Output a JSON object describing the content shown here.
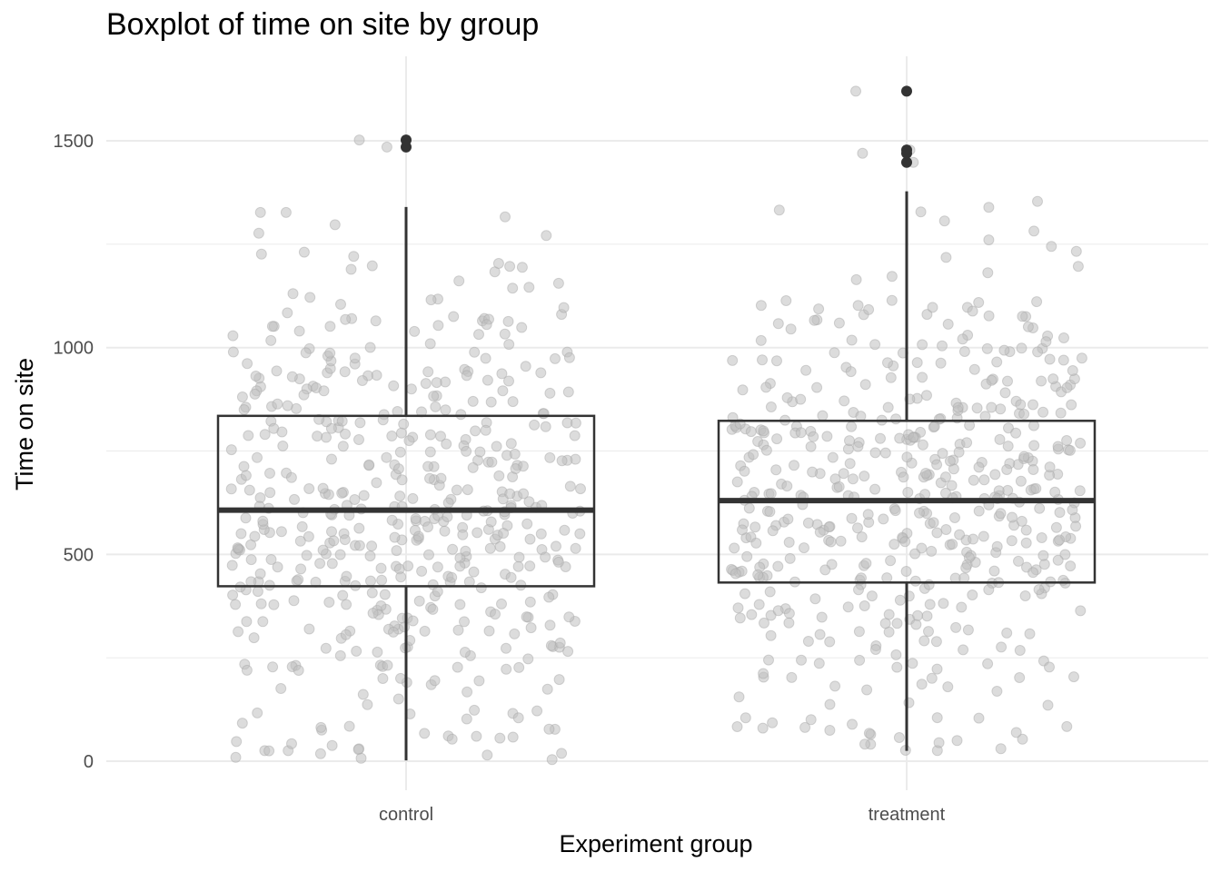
{
  "chart_data": {
    "type": "boxplot",
    "title": "Boxplot of time on site by group",
    "xlabel": "Experiment group",
    "ylabel": "Time on site",
    "categories": [
      "control",
      "treatment"
    ],
    "y_ticks": [
      0,
      500,
      1000,
      1500
    ],
    "ylim": [
      -70,
      1700
    ],
    "grid": true,
    "boxes": [
      {
        "group": "control",
        "whisker_low": 2,
        "q1": 423,
        "median": 607,
        "q3": 835,
        "whisker_high": 1340,
        "outliers": [
          1485,
          1502
        ]
      },
      {
        "group": "treatment",
        "whisker_low": 25,
        "q1": 432,
        "median": 630,
        "q3": 823,
        "whisker_high": 1378,
        "outliers": [
          1448,
          1470,
          1478,
          1620
        ]
      }
    ],
    "jitter_points": true,
    "colors": {
      "box_line": "#333333",
      "points": "#bfbfbf",
      "grid": "#ebebeb"
    }
  }
}
